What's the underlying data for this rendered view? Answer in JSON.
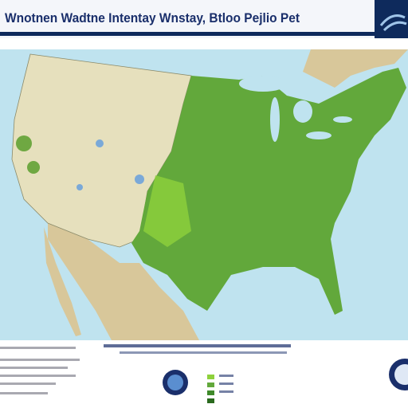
{
  "header": {
    "title": "Wnotnen Wadtne Intentay Wnstay, Btloo Pejlio Pet"
  }
}
